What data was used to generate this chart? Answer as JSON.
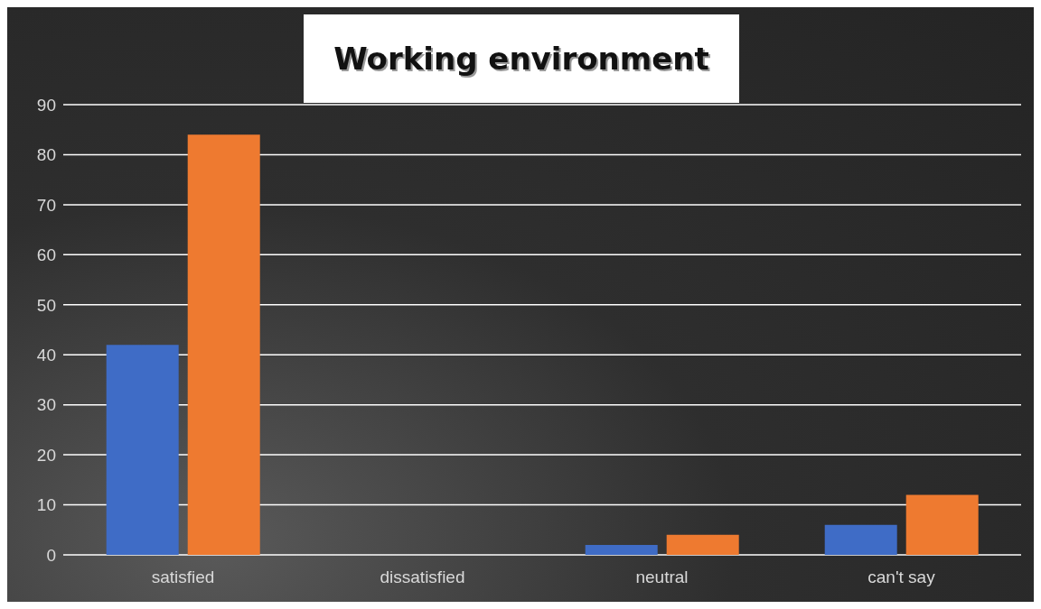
{
  "chart_data": {
    "type": "bar",
    "title": "Working environment",
    "categories": [
      "satisfied",
      "dissatisfied",
      "neutral",
      "can't say"
    ],
    "series": [
      {
        "color": "#3f6cc6",
        "values": [
          42,
          0,
          2,
          6
        ]
      },
      {
        "color": "#ee7a30",
        "values": [
          84,
          0,
          4,
          12
        ]
      }
    ],
    "ylim": [
      0,
      90
    ],
    "yticks": [
      0,
      10,
      20,
      30,
      40,
      50,
      60,
      70,
      80,
      90
    ],
    "grid": "y"
  }
}
